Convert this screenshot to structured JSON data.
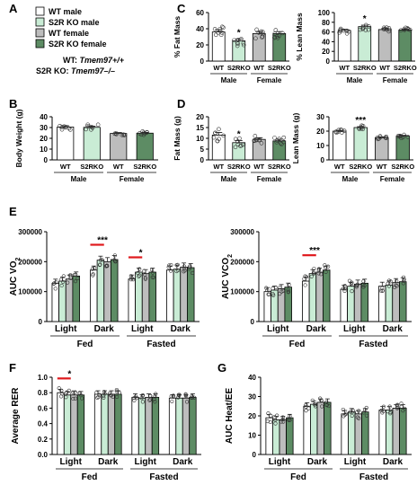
{
  "panel_letters": [
    "A",
    "B",
    "C",
    "D",
    "E",
    "F",
    "G"
  ],
  "legend": {
    "items": [
      {
        "label": "WT male",
        "color": "#ffffff"
      },
      {
        "label": "S2R KO male",
        "color": "#c9ecd5"
      },
      {
        "label": "WT female",
        "color": "#bdbdbd"
      },
      {
        "label": "S2R KO female",
        "color": "#5d8c64"
      }
    ],
    "genotype_wt_prefix": "WT: ",
    "genotype_wt_gene": "Tmem97+/+",
    "genotype_ko_prefix": "S2R KO: ",
    "genotype_ko_gene": "Tmem97–/–"
  },
  "colors": {
    "wt_male": "#ffffff",
    "ko_male": "#c9ecd5",
    "wt_female": "#bdbdbd",
    "ko_female": "#5d8c64",
    "significance_bar": "#e0191d"
  },
  "chart_data": [
    {
      "id": "B",
      "type": "bar",
      "ylabel": "Body Weight (g)",
      "ylim": [
        0,
        40
      ],
      "yticks": [
        "0",
        "10",
        "20",
        "30",
        "40"
      ],
      "categories": [
        "WT",
        "S2RKO",
        "WT",
        "S2RKO"
      ],
      "groups": [
        "Male",
        "Female"
      ],
      "values": [
        30.5,
        30.2,
        24.5,
        24.8
      ],
      "errors": [
        1.2,
        1.1,
        0.8,
        0.7
      ],
      "stars": [
        "",
        "",
        "",
        ""
      ]
    },
    {
      "id": "C1",
      "type": "bar",
      "ylabel": "% Fat Mass",
      "ylim": [
        0,
        60
      ],
      "yticks": [
        "0",
        "20",
        "40",
        "60"
      ],
      "categories": [
        "WT",
        "S2RKO",
        "WT",
        "S2RKO"
      ],
      "groups": [
        "Male",
        "Female"
      ],
      "values": [
        36,
        25,
        34,
        34
      ],
      "errors": [
        3,
        2.5,
        2.5,
        2.5
      ],
      "stars": [
        "",
        "*",
        "",
        ""
      ]
    },
    {
      "id": "C2",
      "type": "bar",
      "ylabel": "% Lean Mass",
      "ylim": [
        0,
        100
      ],
      "yticks": [
        "0",
        "20",
        "40",
        "60",
        "80",
        "100"
      ],
      "categories": [
        "WT",
        "S2RKO",
        "WT",
        "S2RKO"
      ],
      "groups": [
        "Male",
        "Female"
      ],
      "values": [
        63,
        71,
        65,
        64
      ],
      "errors": [
        2.5,
        3,
        2,
        2
      ],
      "stars": [
        "",
        "*",
        "",
        ""
      ]
    },
    {
      "id": "D1",
      "type": "bar",
      "ylabel": "Fat Mass (g)",
      "ylim": [
        0,
        20
      ],
      "yticks": [
        "0",
        "5",
        "10",
        "15",
        "20"
      ],
      "categories": [
        "WT",
        "S2RKO",
        "WT",
        "S2RKO"
      ],
      "groups": [
        "Male",
        "Female"
      ],
      "values": [
        11.5,
        8,
        9.5,
        8.8
      ],
      "errors": [
        1.2,
        1,
        0.8,
        0.8
      ],
      "stars": [
        "",
        "*",
        "",
        ""
      ]
    },
    {
      "id": "D2",
      "type": "bar",
      "ylabel": "Lean Mass (g)",
      "ylim": [
        0,
        30
      ],
      "yticks": [
        "0",
        "10",
        "20",
        "30"
      ],
      "categories": [
        "WT",
        "S2RKO",
        "WT",
        "S2RKO"
      ],
      "groups": [
        "Male",
        "Female"
      ],
      "values": [
        20,
        22.5,
        15.5,
        16.5
      ],
      "errors": [
        0.5,
        0.6,
        0.5,
        0.6
      ],
      "stars": [
        "",
        "***",
        "",
        ""
      ]
    },
    {
      "id": "E1",
      "type": "bar",
      "ylabel": "AUC VO",
      "ylabel_sub": "2",
      "ylim": [
        0,
        300000
      ],
      "yticks": [
        "0",
        "100000",
        "200000",
        "300000"
      ],
      "categories": [
        "Light",
        "Dark",
        "Light",
        "Dark"
      ],
      "groups": [
        "Fed",
        "Fasted"
      ],
      "series": [
        {
          "name": "WT male",
          "values": [
            128000,
            172000,
            142000,
            172000
          ]
        },
        {
          "name": "S2R KO male",
          "values": [
            135000,
            205000,
            165000,
            175000
          ]
        },
        {
          "name": "WT female",
          "values": [
            142000,
            200000,
            160000,
            182000
          ]
        },
        {
          "name": "S2R KO female",
          "values": [
            152000,
            207000,
            165000,
            180000
          ]
        }
      ],
      "sig": [
        {
          "category": 1,
          "label": "***"
        },
        {
          "category": 2,
          "label": "*"
        }
      ]
    },
    {
      "id": "E2",
      "type": "bar",
      "ylabel": "AUC VCO",
      "ylabel_sub": "2",
      "ylim": [
        0,
        300000
      ],
      "yticks": [
        "0",
        "100000",
        "200000",
        "300000"
      ],
      "categories": [
        "Light",
        "Dark",
        "Light",
        "Dark"
      ],
      "groups": [
        "Fed",
        "Fasted"
      ],
      "series": [
        {
          "name": "WT male",
          "values": [
            100000,
            135000,
            108000,
            118000
          ]
        },
        {
          "name": "S2R KO male",
          "values": [
            105000,
            160000,
            118000,
            122000
          ]
        },
        {
          "name": "WT female",
          "values": [
            110000,
            165000,
            125000,
            130000
          ]
        },
        {
          "name": "S2R KO female",
          "values": [
            115000,
            172000,
            128000,
            133000
          ]
        }
      ],
      "sig": [
        {
          "category": 1,
          "label": "***"
        }
      ]
    },
    {
      "id": "F",
      "type": "bar",
      "ylabel": "Average RER",
      "ylim": [
        0,
        1.0
      ],
      "yticks": [
        "0.0",
        "0.2",
        "0.4",
        "0.6",
        "0.8",
        "1.0"
      ],
      "categories": [
        "Light",
        "Dark",
        "Light",
        "Dark"
      ],
      "groups": [
        "Fed",
        "Fasted"
      ],
      "series": [
        {
          "name": "WT male",
          "values": [
            0.8,
            0.78,
            0.74,
            0.73
          ]
        },
        {
          "name": "S2R KO male",
          "values": [
            0.77,
            0.78,
            0.73,
            0.73
          ]
        },
        {
          "name": "WT female",
          "values": [
            0.77,
            0.78,
            0.74,
            0.73
          ]
        },
        {
          "name": "S2R KO female",
          "values": [
            0.77,
            0.78,
            0.74,
            0.74
          ]
        }
      ],
      "sig": [
        {
          "category": 0,
          "label": "*"
        }
      ]
    },
    {
      "id": "G",
      "type": "bar",
      "ylabel": "AUC Heat/EE",
      "ylim": [
        0,
        40
      ],
      "yticks": [
        "0",
        "10",
        "20",
        "30",
        "40"
      ],
      "categories": [
        "Light",
        "Dark",
        "Light",
        "Dark"
      ],
      "groups": [
        "Fed",
        "Fasted"
      ],
      "series": [
        {
          "name": "WT male",
          "values": [
            19,
            25,
            21,
            23
          ]
        },
        {
          "name": "S2R KO male",
          "values": [
            18,
            26,
            22,
            23
          ]
        },
        {
          "name": "WT female",
          "values": [
            18,
            27,
            21,
            24
          ]
        },
        {
          "name": "S2R KO female",
          "values": [
            19,
            27,
            22,
            24
          ]
        }
      ],
      "sig": []
    }
  ]
}
